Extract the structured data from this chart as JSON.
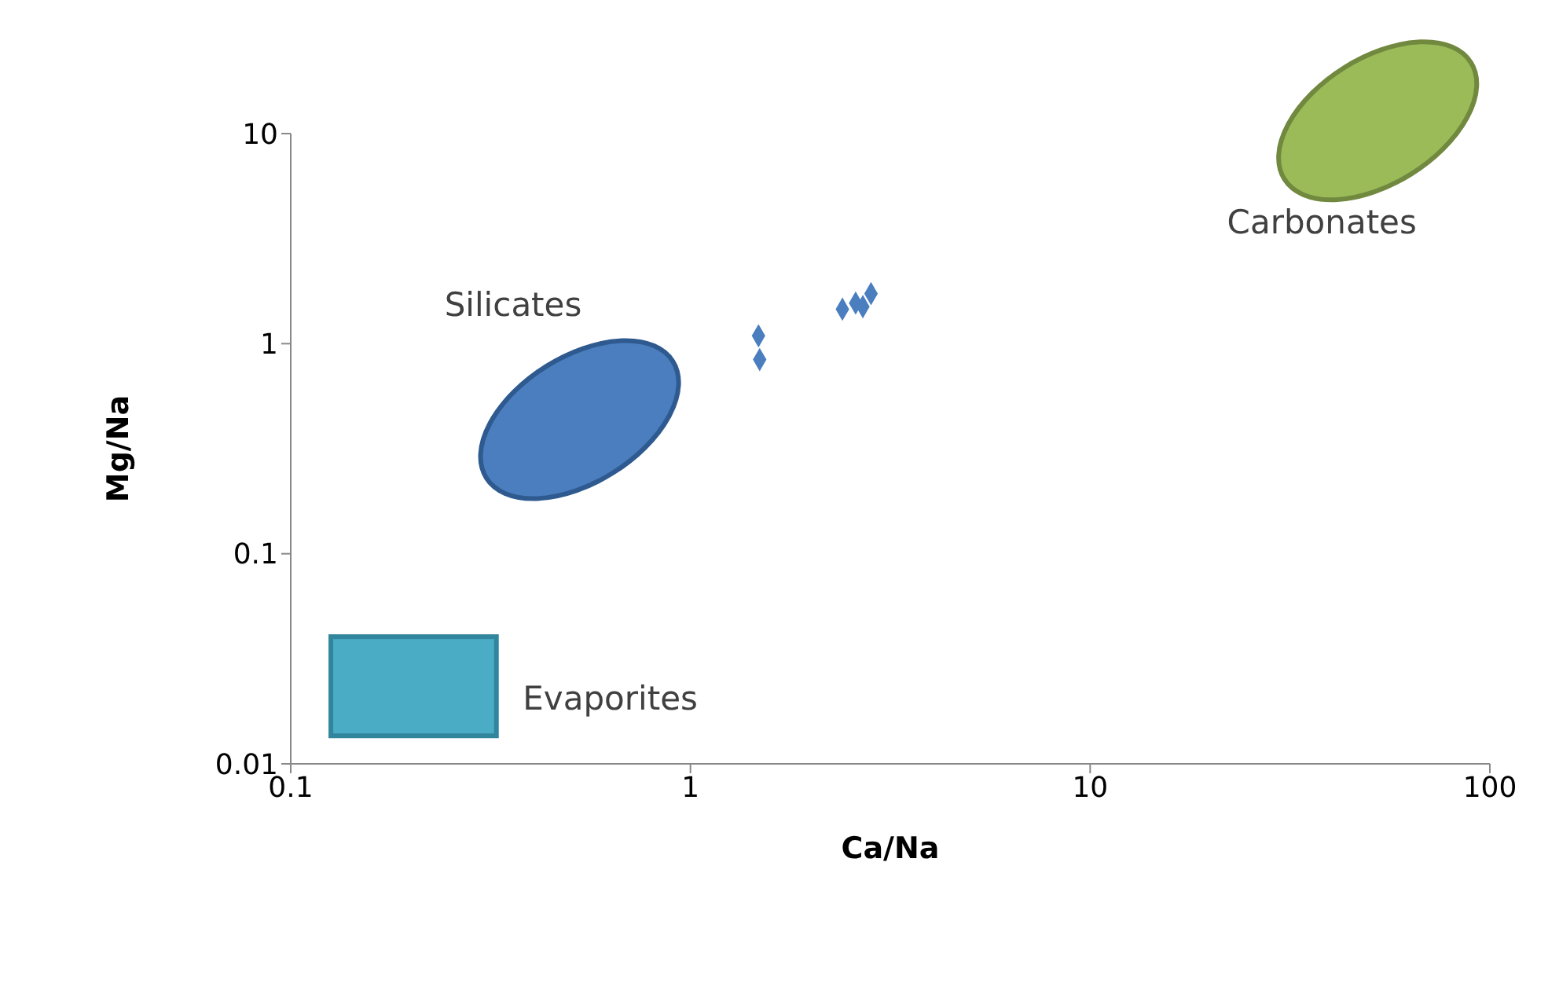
{
  "chart_data": {
    "type": "scatter",
    "xlabel": "Ca/Na",
    "ylabel": "Mg/Na",
    "log": "xy",
    "marker": "diamond",
    "xlim": [
      0.1,
      100
    ],
    "xticks": [
      0.1,
      1,
      10,
      100
    ],
    "ylim": [
      0.01,
      10
    ],
    "yticks": [
      0.01,
      0.1,
      1,
      10
    ],
    "series": [
      {
        "color": "#4a7ebf",
        "x": [
          1.48,
          1.49,
          2.4,
          2.59,
          2.7,
          2.83
        ],
        "values": [
          1.09,
          0.84,
          1.46,
          1.56,
          1.5,
          1.73
        ]
      }
    ],
    "annotations": [
      "Silicates",
      "Carbonates",
      "Evaporites"
    ]
  }
}
